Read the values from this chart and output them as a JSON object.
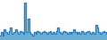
{
  "values": [
    3,
    5,
    3,
    7,
    5,
    4,
    6,
    8,
    4,
    5,
    7,
    5,
    4,
    6,
    5,
    4,
    24,
    5,
    14,
    5,
    4,
    3,
    5,
    4,
    6,
    5,
    4,
    5,
    6,
    5,
    4,
    5,
    6,
    4,
    5,
    4,
    6,
    8,
    5,
    4,
    5,
    6,
    5,
    4,
    5,
    4,
    5,
    7,
    5,
    4,
    5,
    4,
    6,
    5,
    4,
    5,
    6,
    5,
    4,
    5,
    4,
    10,
    8,
    5,
    4,
    5,
    6,
    5,
    4
  ],
  "line_color": "#2b7bba",
  "fill_color": "#6aaed6",
  "background_color": "#ffffff",
  "linewidth": 0.8
}
